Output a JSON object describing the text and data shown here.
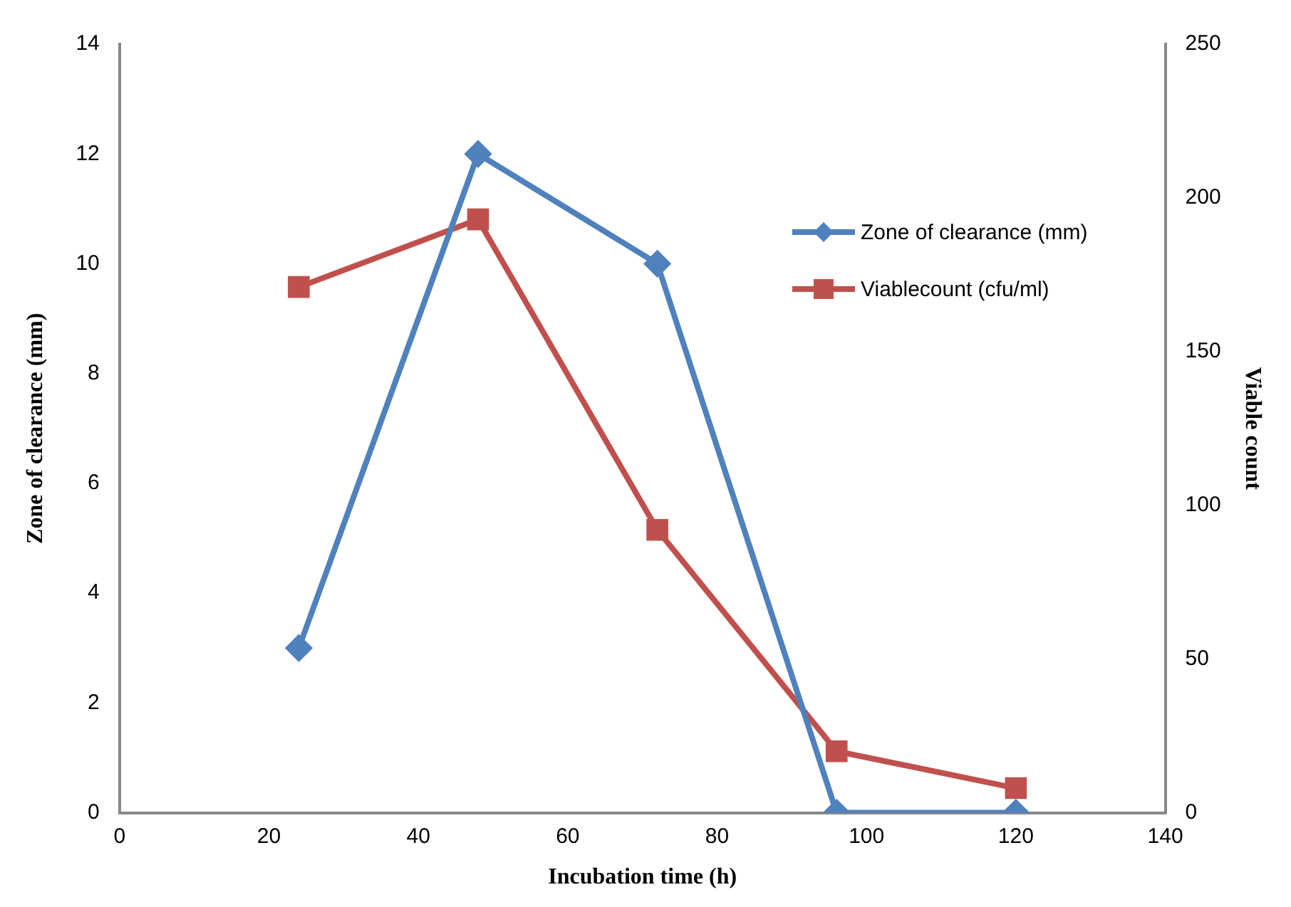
{
  "chart_data": {
    "type": "line",
    "xlabel": "Incubation time (h)",
    "ylabel": "Zone of clearance (mm)",
    "y2label": "Viable count",
    "xlim": [
      0,
      140
    ],
    "xticks": [
      0,
      20,
      40,
      60,
      80,
      100,
      120,
      140
    ],
    "ylim": [
      0,
      14
    ],
    "yticks": [
      0,
      2,
      4,
      6,
      8,
      10,
      12,
      14
    ],
    "y2lim": [
      0,
      250
    ],
    "y2ticks": [
      0,
      50,
      100,
      150,
      200,
      250
    ],
    "grid": false,
    "legend": "top right",
    "series": [
      {
        "name": "Zone of clearance (mm)",
        "color": "#4f81bd",
        "x": [
          24,
          48,
          72,
          96,
          120
        ],
        "values": [
          3,
          12,
          10,
          0,
          0
        ],
        "marker": "diamond"
      },
      {
        "name": "Viablecount (cfu/ml)",
        "color": "#c0504d",
        "x": [
          24,
          48,
          72,
          96,
          120
        ],
        "values": [
          171,
          193,
          92,
          20,
          8
        ],
        "marker": "square",
        "axis": "y2"
      }
    ]
  }
}
